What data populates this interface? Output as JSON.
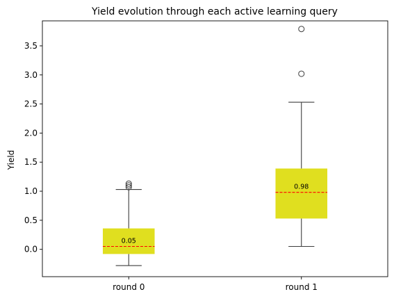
{
  "chart_data": {
    "type": "box",
    "title": "Yield evolution through each active learning query",
    "xlabel": "",
    "ylabel": "Yield",
    "ylim": [
      -0.47,
      3.93
    ],
    "yticks": [
      0.0,
      0.5,
      1.0,
      1.5,
      2.0,
      2.5,
      3.0,
      3.5
    ],
    "ytick_labels": [
      "0.0",
      "0.5",
      "1.0",
      "1.5",
      "2.0",
      "2.5",
      "3.0",
      "3.5"
    ],
    "grid": false,
    "categories": [
      "round 0",
      "round 1"
    ],
    "boxes": [
      {
        "category": "round 0",
        "whisker_low": -0.28,
        "q1": -0.08,
        "median": 0.05,
        "q3": 0.36,
        "whisker_high": 1.03,
        "outliers": [
          1.07,
          1.1,
          1.13
        ],
        "median_label": "0.05"
      },
      {
        "category": "round 1",
        "whisker_low": 0.05,
        "q1": 0.53,
        "median": 0.98,
        "q3": 1.39,
        "whisker_high": 2.53,
        "outliers": [
          3.02,
          3.79
        ],
        "median_label": "0.98"
      }
    ],
    "colors": {
      "box_fill": "#e0df1f",
      "median_line": "#ff0000",
      "whisker": "#3d3d3d",
      "outlier_edge": "#3d3d3d",
      "axes": "#000000"
    }
  }
}
